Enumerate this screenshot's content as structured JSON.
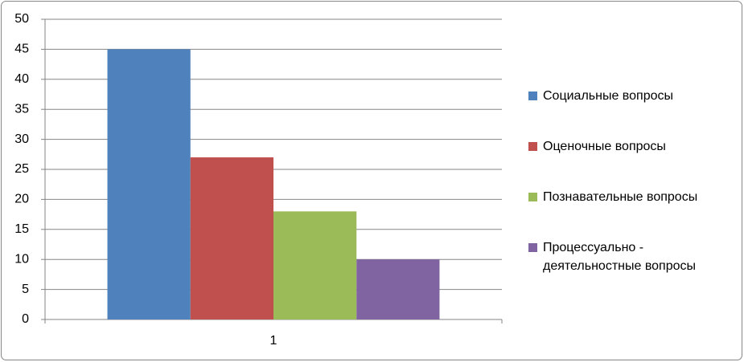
{
  "chart_data": {
    "type": "bar",
    "categories": [
      "1"
    ],
    "series": [
      {
        "name": "Социальные вопросы",
        "color": "#4f81bd",
        "values": [
          45
        ]
      },
      {
        "name": "Оценочные вопросы",
        "color": "#c0504d",
        "values": [
          27
        ]
      },
      {
        "name": "Познавательные вопросы",
        "color": "#9bbb59",
        "values": [
          18
        ]
      },
      {
        "name": "Процессуально - деятельностные вопросы",
        "color": "#8064a2",
        "values": [
          10
        ]
      }
    ],
    "ylim": [
      0,
      50
    ],
    "yticks": [
      0,
      5,
      10,
      15,
      20,
      25,
      30,
      35,
      40,
      45,
      50
    ],
    "grid": true,
    "legend": "right"
  }
}
